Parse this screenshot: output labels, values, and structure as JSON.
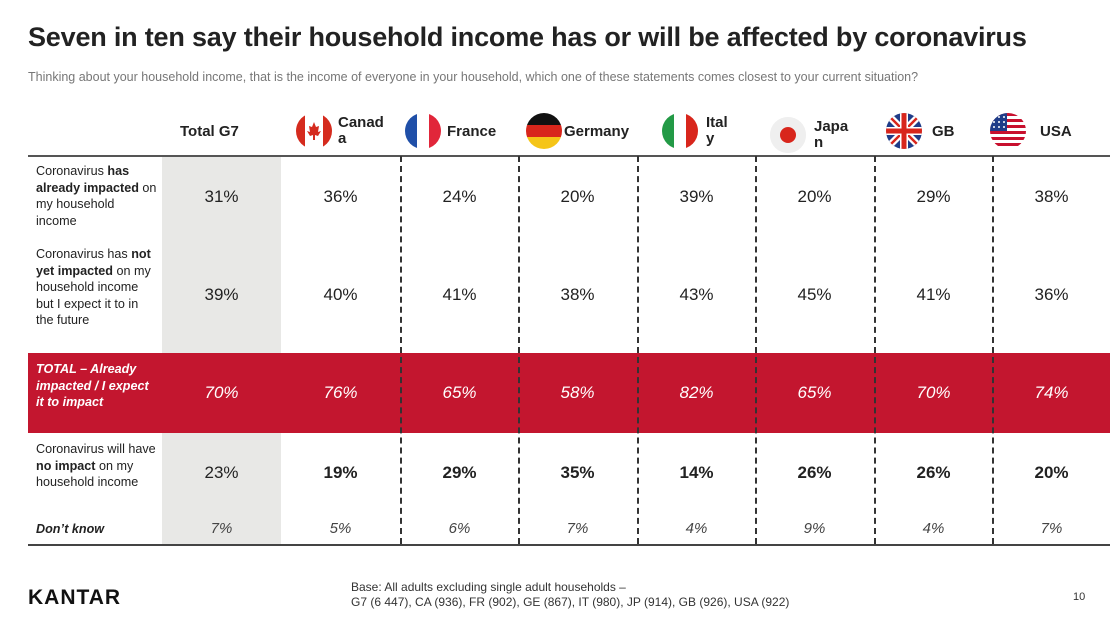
{
  "title": "Seven in ten say their household income has or will be affected by coronavirus",
  "subtitle": "Thinking about your household income, that is the income of everyone in your household, which one of these statements comes closest to your current situation?",
  "columns": [
    {
      "label": "Total G7",
      "flag": null
    },
    {
      "label": "Canad a",
      "flag": "canada-flag-icon"
    },
    {
      "label": "France",
      "flag": "france-flag-icon"
    },
    {
      "label": "Germany",
      "flag": "germany-flag-icon"
    },
    {
      "label": "Ital y",
      "flag": "italy-flag-icon"
    },
    {
      "label": "Japa n",
      "flag": "japan-flag-icon"
    },
    {
      "label": "GB",
      "flag": "gb-flag-icon"
    },
    {
      "label": "USA",
      "flag": "usa-flag-icon"
    }
  ],
  "rows": [
    {
      "label_html": "Coronavirus <b>has already impacted</b> on my household income",
      "values": [
        "31%",
        "36%",
        "24%",
        "20%",
        "39%",
        "20%",
        "29%",
        "38%"
      ]
    },
    {
      "label_html": "Coronavirus has <b>not yet impacted</b> on my household income but I expect it to in the future",
      "values": [
        "39%",
        "40%",
        "41%",
        "38%",
        "43%",
        "45%",
        "41%",
        "36%"
      ]
    },
    {
      "label_html": "TOTAL – Already impacted / I expect it to impact",
      "values": [
        "70%",
        "76%",
        "65%",
        "58%",
        "82%",
        "65%",
        "70%",
        "74%"
      ]
    },
    {
      "label_html": "Coronavirus will have <b>no impact</b> on my household income",
      "values": [
        "23%",
        "19%",
        "29%",
        "35%",
        "14%",
        "26%",
        "26%",
        "20%"
      ]
    },
    {
      "label_html": "Don’t know",
      "values": [
        "7%",
        "5%",
        "6%",
        "7%",
        "4%",
        "9%",
        "4%",
        "7%"
      ]
    }
  ],
  "colors": {
    "highlight_band": "#c3162f",
    "g7_column_bg": "#e8e8e6"
  },
  "footer": {
    "logo": "KANTAR",
    "base_line1": "Base: All adults excluding single adult households –",
    "base_line2": "G7 (6 447), CA (936), FR (902), GE (867), IT (980), JP (914), GB (926), USA (922)",
    "page_number": "10"
  }
}
